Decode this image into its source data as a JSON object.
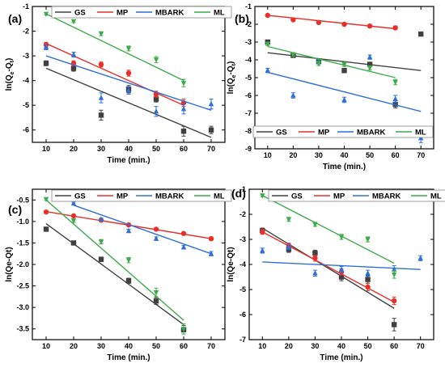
{
  "chart_data": [
    {
      "panel": "(a)",
      "type": "scatter",
      "xlabel": "Time (min.)",
      "ylabel": "ln(Qe-Qt)",
      "ylabel_sub": "e",
      "ylabel_sub2": "t",
      "xlim": [
        5,
        75
      ],
      "ylim": [
        -6.5,
        -1
      ],
      "xticks": [
        10,
        20,
        30,
        40,
        50,
        60,
        70
      ],
      "yticks": [
        -6,
        -5,
        -4,
        -3,
        -2,
        -1
      ],
      "legend": "top",
      "series": [
        {
          "name": "GS",
          "color": "#404040",
          "marker": "square",
          "x": [
            10,
            20,
            30,
            40,
            50,
            60,
            70
          ],
          "y": [
            -3.3,
            -3.5,
            -5.4,
            -4.35,
            -4.75,
            -6.05,
            -6.0
          ],
          "err": [
            0.1,
            0.12,
            0.2,
            0.15,
            0.12,
            0.2,
            0.15
          ],
          "fit": {
            "x": [
              10,
              70
            ],
            "y": [
              -3.5,
              -6.3
            ]
          }
        },
        {
          "name": "MP",
          "color": "#e8302a",
          "marker": "circle",
          "x": [
            10,
            20,
            30,
            40,
            50,
            60
          ],
          "y": [
            -2.55,
            -3.3,
            -3.35,
            -3.7,
            -4.55,
            -4.9
          ],
          "err": [
            0.1,
            0.1,
            0.1,
            0.12,
            0.12,
            0.15
          ],
          "fit": {
            "x": [
              10,
              60
            ],
            "y": [
              -2.5,
              -5.0
            ]
          }
        },
        {
          "name": "MBARK",
          "color": "#2e6fd8",
          "marker": "triangle",
          "x": [
            10,
            20,
            30,
            40,
            50,
            60,
            70
          ],
          "y": [
            -2.65,
            -2.95,
            -4.7,
            -4.4,
            -5.25,
            -5.15,
            -4.95
          ],
          "err": [
            0.1,
            0.1,
            0.2,
            0.15,
            0.2,
            0.2,
            0.2
          ],
          "fit": {
            "x": [
              10,
              70
            ],
            "y": [
              -3.0,
              -5.2
            ]
          }
        },
        {
          "name": "ML",
          "color": "#3dab4a",
          "marker": "invtriangle",
          "x": [
            10,
            20,
            30,
            40,
            50,
            60
          ],
          "y": [
            -1.3,
            -1.6,
            -2.1,
            -2.7,
            -3.15,
            -4.1
          ],
          "err": [
            0.05,
            0.05,
            0.08,
            0.1,
            0.12,
            0.15
          ],
          "fit": {
            "x": [
              10,
              60
            ],
            "y": [
              -1.3,
              -4.0
            ]
          }
        }
      ]
    },
    {
      "panel": "(b)",
      "type": "scatter",
      "xlabel": "Time (min.)",
      "ylabel": "ln(Qe-Qt)",
      "ylabel_sub": "e",
      "ylabel_sub2": "t",
      "xlim": [
        5,
        75
      ],
      "ylim": [
        -9,
        -1
      ],
      "xticks": [
        10,
        20,
        30,
        40,
        50,
        60,
        70
      ],
      "yticks": [
        -9,
        -8,
        -7,
        -6,
        -5,
        -4,
        -3,
        -2,
        -1
      ],
      "legend": "bottom",
      "series": [
        {
          "name": "GS",
          "color": "#404040",
          "marker": "square",
          "x": [
            10,
            20,
            30,
            40,
            50,
            60,
            70
          ],
          "y": [
            -3.0,
            -3.75,
            -4.1,
            -4.6,
            -4.25,
            -6.5,
            -2.55
          ],
          "err": [
            0.1,
            0.1,
            0.12,
            0.12,
            0.1,
            0.2,
            0.1
          ],
          "fit": {
            "x": [
              10,
              70
            ],
            "y": [
              -3.6,
              -4.6
            ]
          }
        },
        {
          "name": "MP",
          "color": "#e8302a",
          "marker": "circle",
          "x": [
            10,
            20,
            30,
            40,
            50,
            60
          ],
          "y": [
            -1.5,
            -1.75,
            -1.9,
            -2.0,
            -2.1,
            -2.2
          ],
          "err": [
            0.05,
            0.05,
            0.05,
            0.08,
            0.08,
            0.1
          ],
          "fit": {
            "x": [
              10,
              60
            ],
            "y": [
              -1.5,
              -2.25
            ]
          }
        },
        {
          "name": "MBARK",
          "color": "#2e6fd8",
          "marker": "triangle",
          "x": [
            10,
            20,
            30,
            40,
            50,
            60,
            70
          ],
          "y": [
            -4.6,
            -6.0,
            -4.1,
            -6.25,
            -3.85,
            -6.2,
            -8.4
          ],
          "err": [
            0.12,
            0.15,
            0.12,
            0.15,
            0.12,
            0.2,
            0.25
          ],
          "fit": {
            "x": [
              10,
              70
            ],
            "y": [
              -4.7,
              -6.9
            ]
          }
        },
        {
          "name": "ML",
          "color": "#3dab4a",
          "marker": "invtriangle",
          "x": [
            10,
            20,
            30,
            40,
            50,
            60
          ],
          "y": [
            -3.1,
            -3.7,
            -4.2,
            -4.25,
            -4.45,
            -5.25
          ],
          "err": [
            0.1,
            0.1,
            0.12,
            0.12,
            0.12,
            0.15
          ],
          "fit": {
            "x": [
              10,
              60
            ],
            "y": [
              -3.25,
              -5.0
            ]
          }
        }
      ]
    },
    {
      "panel": "(c)",
      "type": "scatter",
      "xlabel": "Time (min.)",
      "ylabel": "ln(Qe-Qt)",
      "xlim": [
        5,
        75
      ],
      "ylim": [
        -3.75,
        -0.25
      ],
      "xticks": [
        10,
        20,
        30,
        40,
        50,
        60,
        70
      ],
      "yticks": [
        -3.5,
        -3.0,
        -2.5,
        -2.0,
        -1.5,
        -1.0,
        -0.5
      ],
      "legend": "top",
      "series": [
        {
          "name": "GS",
          "color": "#404040",
          "marker": "square",
          "x": [
            10,
            20,
            30,
            40,
            50,
            60
          ],
          "y": [
            -1.18,
            -1.5,
            -1.88,
            -2.38,
            -2.85,
            -3.52
          ],
          "err": [
            0.04,
            0.04,
            0.05,
            0.06,
            0.08,
            0.1
          ],
          "fit": {
            "x": [
              10,
              60
            ],
            "y": [
              -1.05,
              -3.4
            ]
          }
        },
        {
          "name": "MP",
          "color": "#e8302a",
          "marker": "circle",
          "x": [
            10,
            20,
            30,
            40,
            50,
            60,
            70
          ],
          "y": [
            -0.78,
            -0.87,
            -0.97,
            -1.08,
            -1.18,
            -1.28,
            -1.4
          ],
          "err": [
            0.02,
            0.02,
            0.03,
            0.03,
            0.03,
            0.03,
            0.04
          ],
          "fit": {
            "x": [
              10,
              70
            ],
            "y": [
              -0.77,
              -1.4
            ]
          }
        },
        {
          "name": "MBARK",
          "color": "#2e6fd8",
          "marker": "triangle",
          "x": [
            20,
            30,
            40,
            50,
            60,
            70
          ],
          "y": [
            -0.58,
            -0.95,
            -1.22,
            -1.4,
            -1.6,
            -1.75
          ],
          "err": [
            0.03,
            0.03,
            0.04,
            0.04,
            0.04,
            0.05
          ],
          "fit": {
            "x": [
              20,
              70
            ],
            "y": [
              -0.62,
              -1.75
            ]
          }
        },
        {
          "name": "ML",
          "color": "#3dab4a",
          "marker": "invtriangle",
          "x": [
            10,
            20,
            30,
            40,
            50,
            60
          ],
          "y": [
            -0.48,
            -0.98,
            -1.47,
            -1.9,
            -2.65,
            -3.5
          ],
          "err": [
            0.03,
            0.04,
            0.05,
            0.06,
            0.1,
            0.12
          ],
          "fit": {
            "x": [
              10,
              60
            ],
            "y": [
              -0.5,
              -3.3
            ]
          }
        }
      ]
    },
    {
      "panel": "(d)",
      "type": "scatter",
      "xlabel": "Time (min.)",
      "ylabel": "ln(Qe-Qt)",
      "xlim": [
        5,
        75
      ],
      "ylim": [
        -7,
        -1
      ],
      "xticks": [
        10,
        20,
        30,
        40,
        50,
        60,
        70
      ],
      "yticks": [
        -7,
        -6,
        -5,
        -4,
        -3,
        -2,
        -1
      ],
      "legend": "top",
      "series": [
        {
          "name": "GS",
          "color": "#404040",
          "marker": "square",
          "x": [
            10,
            20,
            30,
            40,
            50,
            60
          ],
          "y": [
            -2.65,
            -3.4,
            -3.55,
            -4.5,
            -4.6,
            -6.4
          ],
          "err": [
            0.1,
            0.12,
            0.12,
            0.15,
            0.15,
            0.25
          ],
          "fit": {
            "x": [
              10,
              60
            ],
            "y": [
              -2.55,
              -5.75
            ]
          }
        },
        {
          "name": "MP",
          "color": "#e8302a",
          "marker": "circle",
          "x": [
            10,
            20,
            30,
            40,
            50,
            60
          ],
          "y": [
            -2.7,
            -3.25,
            -3.75,
            -4.3,
            -4.9,
            -5.45
          ],
          "err": [
            0.1,
            0.1,
            0.12,
            0.12,
            0.15,
            0.15
          ],
          "fit": {
            "x": [
              10,
              60
            ],
            "y": [
              -2.7,
              -5.5
            ]
          }
        },
        {
          "name": "MBARK",
          "color": "#2e6fd8",
          "marker": "triangle",
          "x": [
            10,
            20,
            30,
            40,
            50,
            60,
            70
          ],
          "y": [
            -3.45,
            -3.3,
            -4.35,
            -4.2,
            -4.35,
            -4.2,
            -3.75
          ],
          "err": [
            0.1,
            0.1,
            0.12,
            0.12,
            0.12,
            0.15,
            0.1
          ],
          "fit": {
            "x": [
              10,
              70
            ],
            "y": [
              -3.9,
              -4.2
            ]
          }
        },
        {
          "name": "ML",
          "color": "#3dab4a",
          "marker": "invtriangle",
          "x": [
            10,
            20,
            30,
            40,
            50,
            60
          ],
          "y": [
            -1.25,
            -2.2,
            -2.4,
            -2.9,
            -3.0,
            -4.4
          ],
          "err": [
            0.05,
            0.08,
            0.08,
            0.1,
            0.1,
            0.15
          ],
          "fit": {
            "x": [
              10,
              60
            ],
            "y": [
              -1.25,
              -3.95
            ]
          }
        }
      ]
    }
  ]
}
